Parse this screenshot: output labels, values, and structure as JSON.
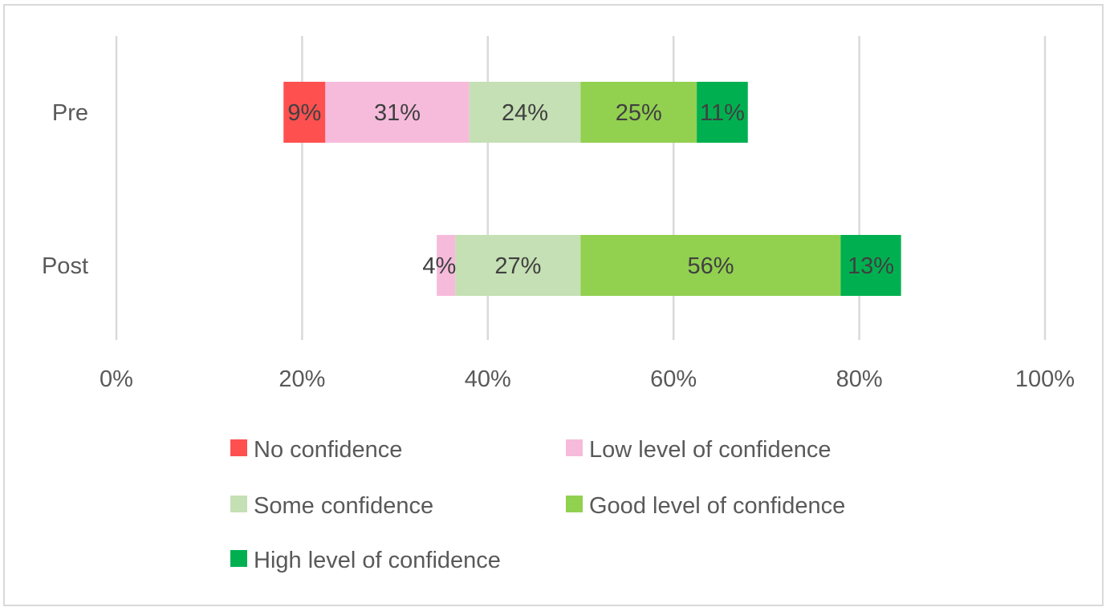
{
  "chart_data": {
    "type": "bar",
    "orientation": "horizontal",
    "stacking": "diverging",
    "title": "",
    "xlabel": "",
    "ylabel": "",
    "xlim": [
      0,
      100
    ],
    "x_tick_labels": [
      "0%",
      "20%",
      "40%",
      "60%",
      "80%",
      "100%"
    ],
    "x_ticks": [
      0,
      20,
      40,
      60,
      80,
      100
    ],
    "grid": true,
    "legend_position": "bottom",
    "categories": [
      "Pre",
      "Post"
    ],
    "series": [
      {
        "name": "No confidence",
        "color": "#ff5050",
        "values": [
          9,
          0
        ],
        "labels": [
          "9%",
          ""
        ]
      },
      {
        "name": "Low level of confidence",
        "color": "#f6bbdb",
        "values": [
          31,
          4
        ],
        "labels": [
          "31%",
          "4%"
        ]
      },
      {
        "name": "Some confidence",
        "color": "#c5e0b4",
        "values": [
          24,
          27
        ],
        "labels": [
          "24%",
          "27%"
        ]
      },
      {
        "name": "Good level of confidence",
        "color": "#92d050",
        "values": [
          25,
          56
        ],
        "labels": [
          "25%",
          "56%"
        ]
      },
      {
        "name": "High level of confidence",
        "color": "#00b050",
        "values": [
          11,
          13
        ],
        "labels": [
          "11%",
          "13%"
        ]
      }
    ],
    "center_value": 50,
    "negative_series_count": 3
  }
}
